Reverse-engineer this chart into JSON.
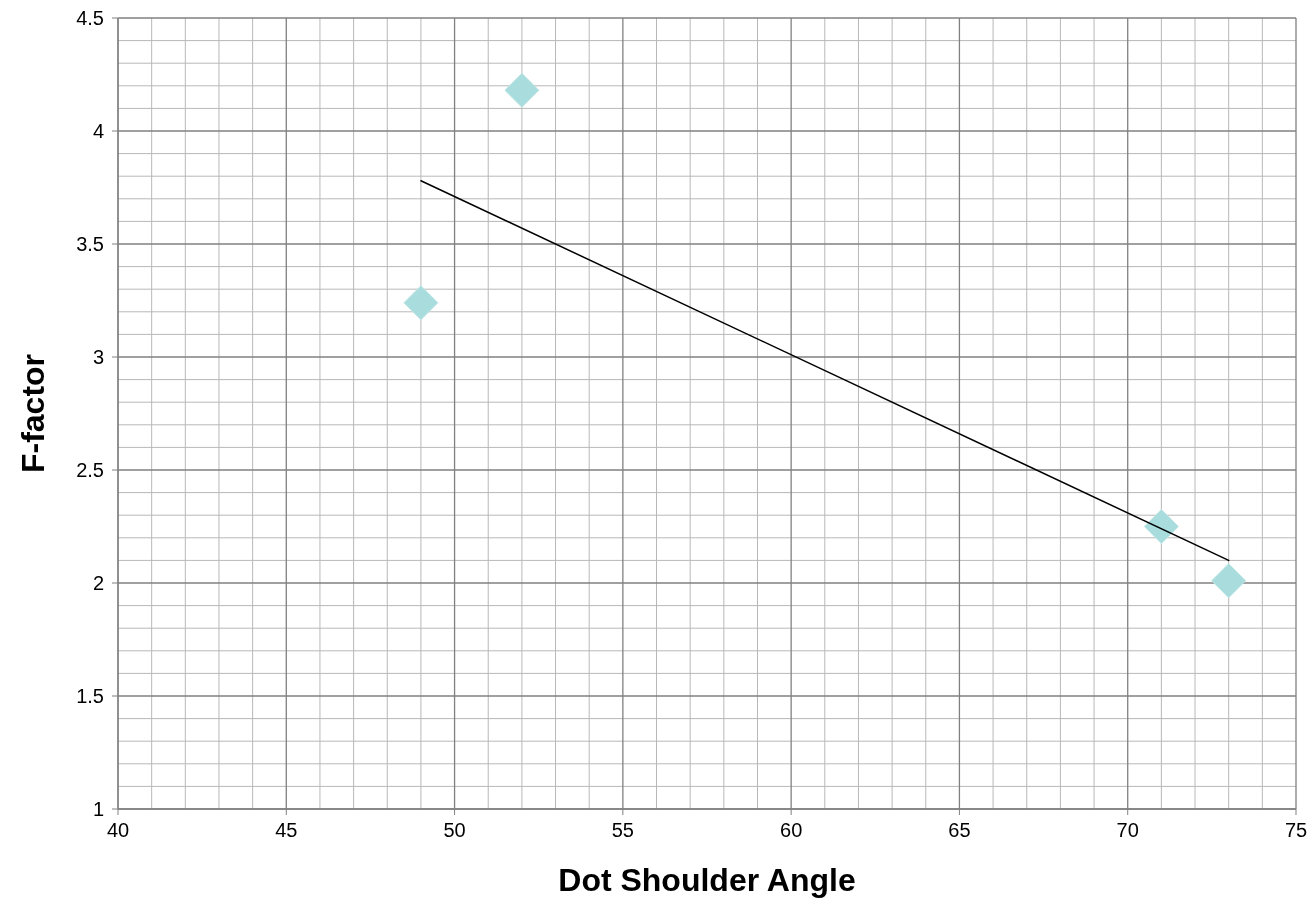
{
  "chart_data": {
    "type": "scatter",
    "xlabel": "Dot Shoulder Angle",
    "ylabel": "F-factor",
    "xlim": [
      40,
      75
    ],
    "ylim": [
      1,
      4.5
    ],
    "xticks": [
      40,
      45,
      50,
      55,
      60,
      65,
      70,
      75
    ],
    "yticks": [
      1,
      1.5,
      2,
      2.5,
      3,
      3.5,
      4,
      4.5
    ],
    "grid": true,
    "marker": "diamond",
    "series": [
      {
        "color": "#a9dcdc",
        "x": [
          49,
          52,
          71,
          73
        ],
        "values": [
          3.24,
          4.18,
          2.25,
          2.01
        ]
      },
      {
        "type": "line",
        "color": "#000000",
        "x": [
          49,
          73
        ],
        "values": [
          3.78,
          2.1
        ],
        "marker": "none"
      }
    ]
  }
}
